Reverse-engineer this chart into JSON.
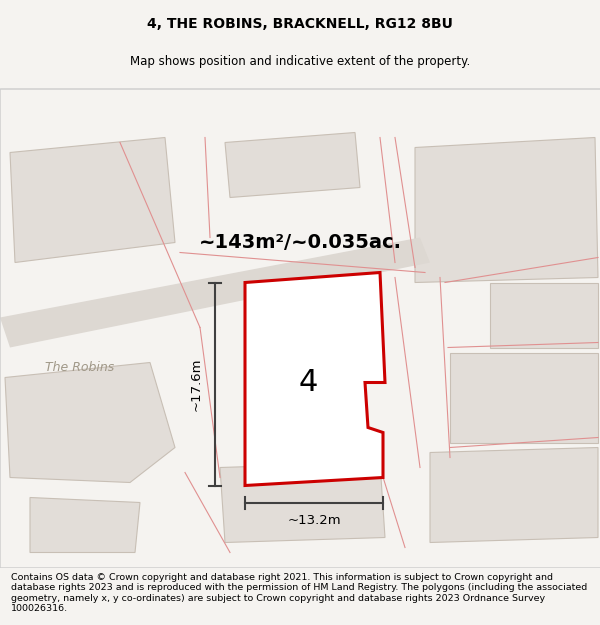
{
  "title": "4, THE ROBINS, BRACKNELL, RG12 8BU",
  "subtitle": "Map shows position and indicative extent of the property.",
  "area_label": "~143m²/~0.035ac.",
  "dim_height": "~17.6m",
  "dim_width": "~13.2m",
  "plot_number": "4",
  "footer": "Contains OS data © Crown copyright and database right 2021. This information is subject to Crown copyright and database rights 2023 and is reproduced with the permission of HM Land Registry. The polygons (including the associated geometry, namely x, y co-ordinates) are subject to Crown copyright and database rights 2023 Ordnance Survey 100026316.",
  "bg_color": "#f5f3f0",
  "map_bg": "#f5f3f0",
  "road_color": "#e8e0d8",
  "building_fill": "#e0dbd5",
  "building_outline": "#c8bfb5",
  "plot_fill": "#ffffff",
  "plot_outline": "#cc0000",
  "street_label_color": "#b0a898",
  "dim_color": "#404040",
  "red_line_color": "#e8a0a0",
  "title_fontsize": 10,
  "subtitle_fontsize": 8.5,
  "footer_fontsize": 7.2
}
